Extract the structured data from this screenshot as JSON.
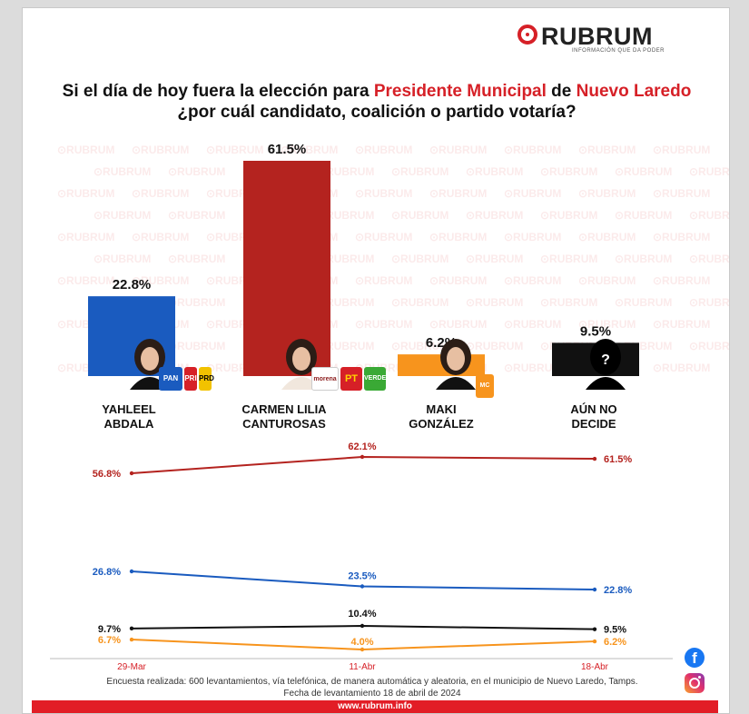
{
  "brand": {
    "name": "RUBRUM",
    "tagline": "INFORMACIÓN QUE DA PODER",
    "url": "www.rubrum.info"
  },
  "title": {
    "part1": "Si el día de hoy fuera la elección para ",
    "highlight1": "Presidente Municipal",
    "part2": " de ",
    "highlight2": "Nuevo Laredo",
    "part3": " ¿por cuál candidato, coalición o partido votaría?"
  },
  "candidates": [
    {
      "name_line1": "YAHLEEL",
      "name_line2": "ABDALA",
      "parties": [
        "PAN",
        "PRI",
        "PRD"
      ]
    },
    {
      "name_line1": "CARMEN LILIA",
      "name_line2": "CANTUROSAS",
      "parties": [
        "morena",
        "PT",
        "VERDE"
      ]
    },
    {
      "name_line1": "MAKI",
      "name_line2": "GONZÁLEZ",
      "parties": [
        "MC"
      ]
    },
    {
      "name_line1": "AÚN NO",
      "name_line2": "DECIDE",
      "parties": []
    }
  ],
  "colors": {
    "accent": "#d62027",
    "blue": "#1a5bbf",
    "red": "#b4231f",
    "orange": "#f7941d",
    "black": "#111111"
  },
  "chart_data": [
    {
      "type": "bar",
      "categories": [
        "YAHLEEL ABDALA",
        "CARMEN LILIA CANTUROSAS",
        "MAKI GONZÁLEZ",
        "AÚN NO DECIDE"
      ],
      "values": [
        22.8,
        61.5,
        6.2,
        9.5
      ],
      "value_labels": [
        "22.8%",
        "61.5%",
        "6.2%",
        "9.5%"
      ],
      "colors": [
        "#1a5bbf",
        "#b4231f",
        "#f7941d",
        "#111111"
      ],
      "ylim": [
        0,
        61.5
      ]
    },
    {
      "type": "line",
      "x": [
        "29-Mar",
        "11-Abr",
        "18-Abr"
      ],
      "series": [
        {
          "key": "carmen",
          "color": "#b4231f",
          "values": [
            56.8,
            62.1,
            61.5
          ],
          "labels": [
            "56.8%",
            "62.1%",
            "61.5%"
          ]
        },
        {
          "key": "yahleel",
          "color": "#1a5bbf",
          "values": [
            26.8,
            23.5,
            22.8
          ],
          "labels": [
            "26.8%",
            "23.5%",
            "22.8%"
          ]
        },
        {
          "key": "indecisos",
          "color": "#111111",
          "values": [
            9.7,
            10.4,
            9.5
          ],
          "labels": [
            "9.7%",
            "10.4%",
            "9.5%"
          ]
        },
        {
          "key": "maki",
          "color": "#f7941d",
          "values": [
            6.7,
            4.0,
            6.2
          ],
          "labels": [
            "6.7%",
            "4.0%",
            "6.2%"
          ]
        }
      ]
    }
  ],
  "footer": {
    "line1": "Encuesta realizada: 600 levantamientos, vía telefónica, de manera automática y aleatoria, en el municipio de Nuevo Laredo, Tamps.",
    "line2": "Fecha de levantamiento 18 de abril de 2024"
  },
  "social": {
    "facebook": "facebook-icon",
    "instagram": "instagram-icon"
  }
}
